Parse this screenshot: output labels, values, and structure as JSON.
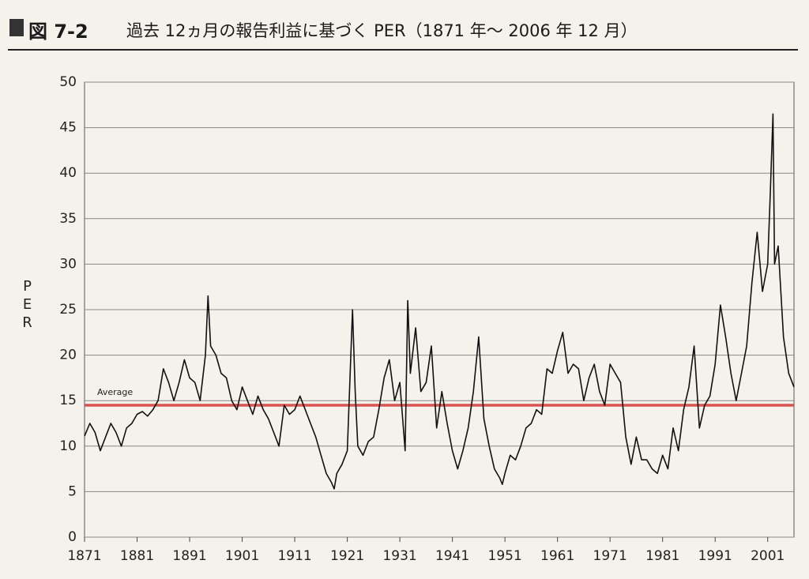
{
  "chart_data": {
    "type": "line",
    "figure_label": "図 7-2",
    "title": "過去 12ヵ月の報告利益に基づく PER（1871 年～ 2006 年 12 月）",
    "y_label": "PER",
    "color": "#111111",
    "grid": true,
    "xlim": [
      1871,
      2006
    ],
    "xticks": [
      1871,
      1881,
      1891,
      1901,
      1911,
      1921,
      1931,
      1941,
      1951,
      1961,
      1971,
      1981,
      1991,
      2001
    ],
    "ylim": [
      0,
      50
    ],
    "yticks": [
      0,
      5,
      10,
      15,
      20,
      25,
      30,
      35,
      40,
      45,
      50
    ],
    "average": {
      "label": "Average",
      "value": 14.5,
      "color": "#d9534f"
    },
    "x": [
      1871,
      1872,
      1873,
      1874,
      1875,
      1876,
      1877,
      1878,
      1879,
      1880,
      1881,
      1882,
      1883,
      1884,
      1885,
      1886,
      1887,
      1888,
      1889,
      1890,
      1891,
      1892,
      1893,
      1894,
      1894.5,
      1895,
      1896,
      1897,
      1898,
      1899,
      1900,
      1901,
      1902,
      1903,
      1904,
      1905,
      1906,
      1907,
      1908,
      1909,
      1910,
      1911,
      1912,
      1913,
      1914,
      1915,
      1916,
      1917,
      1918,
      1918.5,
      1919,
      1920,
      1921,
      1922,
      1922.5,
      1923,
      1924,
      1925,
      1926,
      1927,
      1928,
      1929,
      1930,
      1931,
      1932,
      1932.5,
      1933,
      1934,
      1935,
      1936,
      1937,
      1938,
      1939,
      1940,
      1941,
      1942,
      1943,
      1944,
      1945,
      1946,
      1947,
      1948,
      1949,
      1950,
      1950.5,
      1951,
      1952,
      1953,
      1954,
      1955,
      1956,
      1957,
      1958,
      1959,
      1960,
      1961,
      1962,
      1963,
      1964,
      1965,
      1966,
      1967,
      1968,
      1969,
      1970,
      1971,
      1972,
      1973,
      1974,
      1975,
      1976,
      1977,
      1978,
      1979,
      1980,
      1981,
      1982,
      1983,
      1984,
      1985,
      1986,
      1987,
      1988,
      1989,
      1990,
      1991,
      1992,
      1993,
      1994,
      1995,
      1996,
      1997,
      1998,
      1999,
      2000,
      2001,
      2001.5,
      2002,
      2002.3,
      2003,
      2004,
      2005,
      2006
    ],
    "values": [
      11.1,
      12.5,
      11.5,
      9.5,
      11,
      12.5,
      11.5,
      10,
      12,
      12.5,
      13.5,
      13.8,
      13.3,
      14,
      15,
      18.5,
      17,
      15,
      17,
      19.5,
      17.5,
      17,
      15,
      20,
      26.5,
      21,
      20,
      18,
      17.5,
      15,
      14,
      16.5,
      15,
      13.5,
      15.5,
      14,
      13,
      11.5,
      10,
      14.5,
      13.5,
      14,
      15.5,
      14,
      12.5,
      11,
      9,
      7,
      6,
      5.3,
      7,
      8,
      9.5,
      25,
      16,
      10,
      9,
      10.5,
      11,
      14,
      17.5,
      19.5,
      15,
      17,
      9.5,
      26,
      18,
      23,
      16,
      17,
      21,
      12,
      16,
      12.5,
      9.5,
      7.5,
      9.5,
      12,
      16,
      22,
      13,
      10,
      7.5,
      6.5,
      5.8,
      7,
      9,
      8.5,
      10,
      12,
      12.5,
      14,
      13.5,
      18.5,
      18,
      20.5,
      22.5,
      18,
      19,
      18.5,
      15,
      17.5,
      19,
      16,
      14.5,
      19,
      18,
      17,
      11,
      8,
      11,
      8.5,
      8.5,
      7.5,
      7,
      9,
      7.5,
      12,
      9.5,
      14,
      16.5,
      21,
      12,
      14.5,
      15.5,
      19,
      25.5,
      22,
      18,
      15,
      18,
      21,
      28,
      33.5,
      27,
      30,
      38,
      46.5,
      30,
      32,
      22,
      18,
      16.5
    ]
  }
}
